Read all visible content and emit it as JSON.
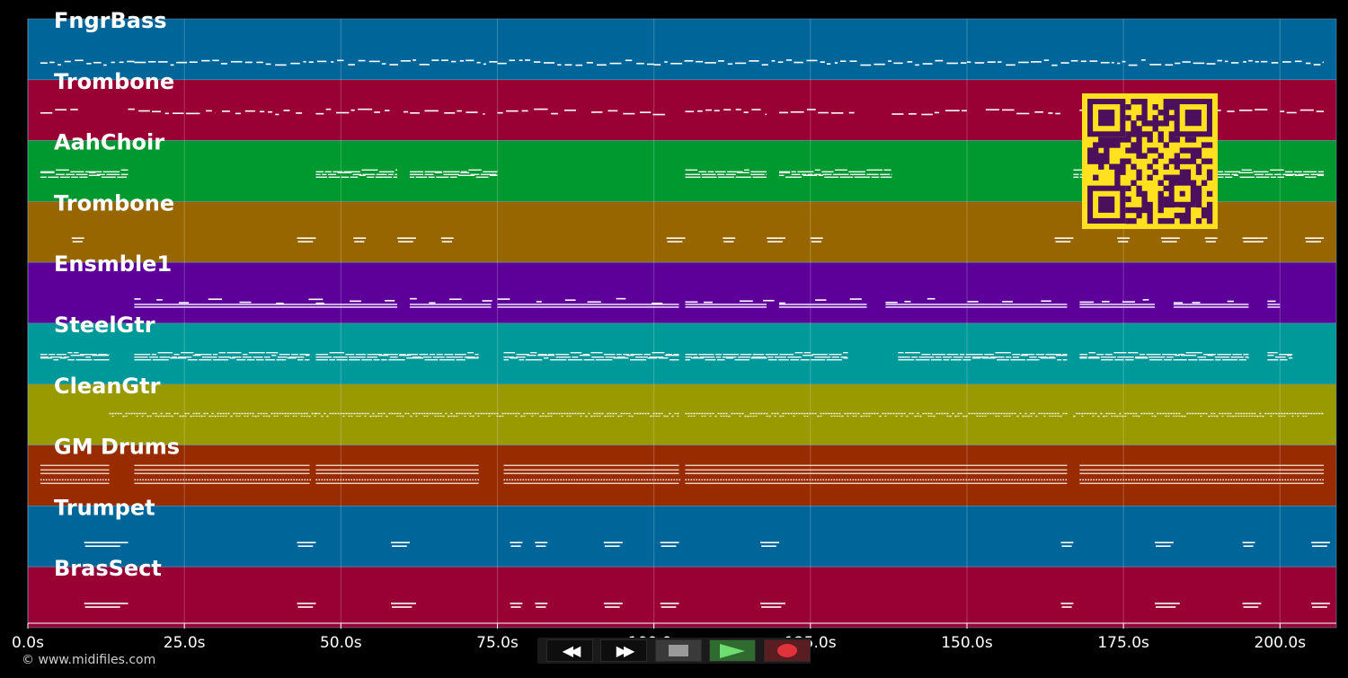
{
  "app": {
    "copyright": "© www.midifiles.com"
  },
  "timeline": {
    "duration_s": 209,
    "ticks": [
      {
        "value": 0,
        "label": "0.0s"
      },
      {
        "value": 25,
        "label": "25.0s"
      },
      {
        "value": 50,
        "label": "50.0s"
      },
      {
        "value": 75,
        "label": "75.0s"
      },
      {
        "value": 100,
        "label": "100.0s"
      },
      {
        "value": 125,
        "label": "125.0s"
      },
      {
        "value": 150,
        "label": "150.0s"
      },
      {
        "value": 175,
        "label": "175.0s"
      },
      {
        "value": 200,
        "label": "200.0s"
      }
    ]
  },
  "tracks": [
    {
      "name": "FngrBass",
      "color": "#00669a",
      "style": "bass",
      "segments": [
        [
          2,
          17
        ],
        [
          17,
          38
        ],
        [
          38,
          75
        ],
        [
          75,
          100
        ],
        [
          100,
          150
        ],
        [
          150,
          165
        ],
        [
          165,
          207
        ]
      ]
    },
    {
      "name": "Trombone",
      "color": "#990033",
      "style": "sparse",
      "segments": [
        [
          2,
          8
        ],
        [
          16,
          30
        ],
        [
          31,
          44
        ],
        [
          46,
          58
        ],
        [
          60,
          73
        ],
        [
          75,
          88
        ],
        [
          90,
          102
        ],
        [
          105,
          118
        ],
        [
          120,
          132
        ],
        [
          138,
          150
        ],
        [
          153,
          165
        ],
        [
          168,
          178
        ],
        [
          190,
          198
        ],
        [
          200,
          207
        ]
      ]
    },
    {
      "name": "AahChoir",
      "color": "#00992f",
      "style": "chord",
      "segments": [
        [
          2,
          16
        ],
        [
          46,
          59
        ],
        [
          61,
          75
        ],
        [
          105,
          118
        ],
        [
          120,
          138
        ],
        [
          167,
          178
        ],
        [
          190,
          207
        ]
      ]
    },
    {
      "name": "Trombone",
      "color": "#986600",
      "style": "blips",
      "segments": [
        [
          7,
          9
        ],
        [
          43,
          46
        ],
        [
          52,
          54
        ],
        [
          59,
          62
        ],
        [
          66,
          68
        ],
        [
          102,
          105
        ],
        [
          111,
          113
        ],
        [
          118,
          121
        ],
        [
          125,
          127
        ],
        [
          164,
          167
        ],
        [
          174,
          176
        ],
        [
          181,
          184
        ],
        [
          188,
          190
        ],
        [
          194,
          198
        ],
        [
          204,
          207
        ]
      ]
    },
    {
      "name": "Ensmble1",
      "color": "#5c0099",
      "style": "sustain",
      "segments": [
        [
          17,
          46
        ],
        [
          46,
          59
        ],
        [
          61,
          74
        ],
        [
          75,
          104
        ],
        [
          105,
          118
        ],
        [
          120,
          134
        ],
        [
          137,
          166
        ],
        [
          168,
          180
        ],
        [
          183,
          195
        ],
        [
          198,
          200
        ]
      ]
    },
    {
      "name": "SteelGtr",
      "color": "#009999",
      "style": "chord",
      "segments": [
        [
          2,
          13
        ],
        [
          17,
          45
        ],
        [
          46,
          72
        ],
        [
          76,
          104
        ],
        [
          105,
          131
        ],
        [
          139,
          166
        ],
        [
          168,
          195
        ],
        [
          198,
          202
        ]
      ]
    },
    {
      "name": "CleanGtr",
      "color": "#999900",
      "style": "dotted",
      "segments": [
        [
          13,
          46
        ],
        [
          46,
          104
        ],
        [
          105,
          166
        ],
        [
          167,
          207
        ]
      ]
    },
    {
      "name": "GM Drums",
      "color": "#992b00",
      "style": "drums",
      "segments": [
        [
          2,
          13
        ],
        [
          17,
          45
        ],
        [
          46,
          72
        ],
        [
          76,
          104
        ],
        [
          105,
          166
        ],
        [
          168,
          207
        ]
      ]
    },
    {
      "name": "Trumpet",
      "color": "#00669a",
      "style": "blips",
      "segments": [
        [
          9,
          16
        ],
        [
          43,
          46
        ],
        [
          58,
          61
        ],
        [
          77,
          79
        ],
        [
          81,
          83
        ],
        [
          92,
          95
        ],
        [
          101,
          104
        ],
        [
          117,
          120
        ],
        [
          165,
          167
        ],
        [
          180,
          183
        ],
        [
          194,
          196
        ],
        [
          205,
          208
        ]
      ]
    },
    {
      "name": "BrasSect",
      "color": "#990033",
      "style": "blips",
      "segments": [
        [
          9,
          16
        ],
        [
          43,
          46
        ],
        [
          58,
          62
        ],
        [
          77,
          79
        ],
        [
          81,
          83
        ],
        [
          92,
          95
        ],
        [
          101,
          104
        ],
        [
          117,
          121
        ],
        [
          165,
          167
        ],
        [
          180,
          184
        ],
        [
          194,
          197
        ],
        [
          205,
          208
        ]
      ]
    }
  ],
  "qr_code": {
    "fg": "#4b0f5c",
    "bg": "#ffe11f"
  },
  "transport": {
    "rewind_glyph": "◀◀",
    "forward_glyph": "▶▶"
  }
}
